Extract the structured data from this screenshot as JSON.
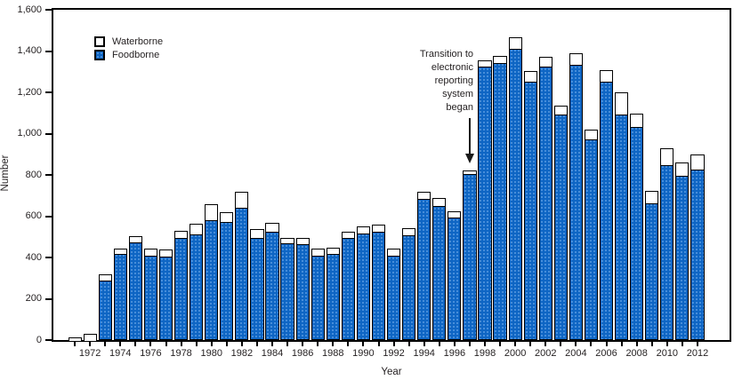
{
  "chart_data": {
    "type": "bar",
    "stacked": true,
    "title": "",
    "xlabel": "Year",
    "ylabel": "Number",
    "ylim": [
      0,
      1600
    ],
    "y_tick_step": 200,
    "y_tick_labels": [
      "0",
      "200",
      "400",
      "600",
      "800",
      "1,000",
      "1,200",
      "1,400",
      "1,600"
    ],
    "grid": false,
    "legend_position": "top-left",
    "categories": [
      1971,
      1972,
      1973,
      1974,
      1975,
      1976,
      1977,
      1978,
      1979,
      1980,
      1981,
      1982,
      1983,
      1984,
      1985,
      1986,
      1987,
      1988,
      1989,
      1990,
      1991,
      1992,
      1993,
      1994,
      1995,
      1996,
      1997,
      1998,
      1999,
      2000,
      2001,
      2002,
      2003,
      2004,
      2005,
      2006,
      2007,
      2008,
      2009,
      2010,
      2011,
      2012
    ],
    "x_labeled_years": [
      1972,
      1974,
      1976,
      1978,
      1980,
      1982,
      1984,
      1986,
      1988,
      1990,
      1992,
      1994,
      1996,
      1998,
      2000,
      2002,
      2004,
      2006,
      2008,
      2010,
      2012
    ],
    "series": [
      {
        "name": "Waterborne",
        "color": "#ffffff",
        "values": [
          20,
          35,
          35,
          30,
          35,
          40,
          40,
          40,
          55,
          80,
          50,
          80,
          50,
          50,
          30,
          35,
          40,
          35,
          35,
          35,
          40,
          40,
          40,
          40,
          45,
          35,
          25,
          35,
          40,
          60,
          55,
          55,
          45,
          60,
          50,
          60,
          110,
          70,
          65,
          85,
          65,
          75
        ]
      },
      {
        "name": "Foodborne",
        "color": "#0e65c4",
        "values": [
          0,
          0,
          290,
          420,
          475,
          410,
          405,
          495,
          515,
          585,
          575,
          645,
          495,
          525,
          470,
          465,
          410,
          420,
          495,
          520,
          525,
          410,
          510,
          685,
          650,
          595,
          805,
          1325,
          1345,
          1415,
          1255,
          1325,
          1095,
          1335,
          975,
          1255,
          1095,
          1035,
          665,
          850,
          800,
          830
        ]
      }
    ]
  },
  "annotation": {
    "lines": [
      "Transition to",
      "electronic",
      "reporting",
      "system",
      "began"
    ],
    "points_to_year": 1997
  },
  "colors": {
    "foodborne_blue": "#0e65c4",
    "waterborne_white": "#ffffff",
    "bar_border": "#000000",
    "text": "#231f20"
  }
}
